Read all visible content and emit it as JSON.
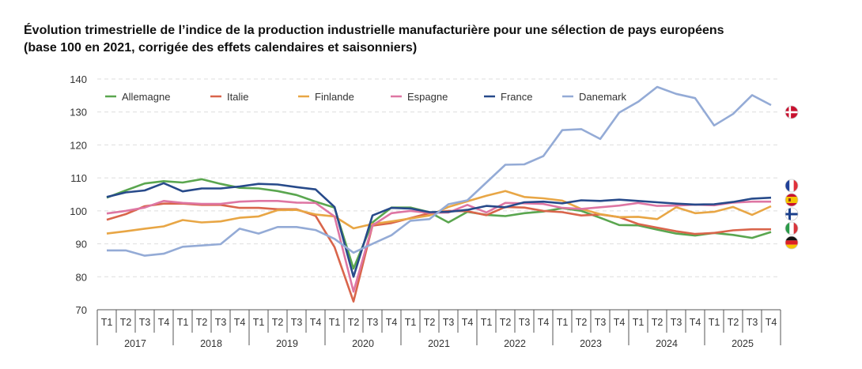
{
  "title_line1": "Évolution trimestrielle de l’indice de la production industrielle manufacturière pour une sélection de pays européens",
  "title_line2": "(base 100 en 2021, corrigée des effets calendaires et saisonniers)",
  "chart_data": {
    "type": "line",
    "title": "Évolution trimestrielle de l’indice de la production industrielle manufacturière pour une sélection de pays européens (base 100 en 2021, corrigée des effets calendaires et saisonniers)",
    "ylim": [
      70,
      140
    ],
    "yticks": [
      70,
      80,
      90,
      100,
      110,
      120,
      130,
      140
    ],
    "grid": "horizontal dashed",
    "legend": "top-left",
    "quarters": [
      "T1",
      "T2",
      "T3",
      "T4"
    ],
    "years": [
      "2017",
      "2018",
      "2019",
      "2020",
      "2021",
      "2022",
      "2023",
      "2024",
      "2025"
    ],
    "series": [
      {
        "name": "Allemagne",
        "color": "#5aa64f",
        "flag": "germany-flag",
        "values": [
          104,
          106.2,
          108.3,
          109,
          108.6,
          109.6,
          108.2,
          107,
          106.8,
          106,
          104.8,
          102.8,
          101,
          82.5,
          96.5,
          101,
          101,
          99.6,
          96.5,
          99.7,
          98.8,
          98.4,
          99.3,
          99.8,
          100.8,
          100,
          97.9,
          95.7,
          95.6,
          94.3,
          93.1,
          92.5,
          93.3,
          92.7,
          91.8,
          93.6
        ]
      },
      {
        "name": "Italie",
        "color": "#d9654b",
        "flag": "italy-flag",
        "values": [
          97.3,
          99,
          101.4,
          102.2,
          102.2,
          101.8,
          101.8,
          100.9,
          100.9,
          100.5,
          100.5,
          98.5,
          89,
          72.5,
          95.5,
          96.3,
          97.8,
          99.3,
          100,
          99.9,
          98.7,
          101.2,
          101,
          100,
          99.6,
          98.6,
          98.9,
          98.1,
          96,
          94.9,
          93.8,
          93,
          93.3,
          94.1,
          94.4,
          94.4
        ]
      },
      {
        "name": "Finlande",
        "color": "#e8a645",
        "flag": "finland-flag",
        "values": [
          93.1,
          93.8,
          94.6,
          95.3,
          97.2,
          96.5,
          96.8,
          97.9,
          98.3,
          100.2,
          100.3,
          98.9,
          98.3,
          94.7,
          96,
          96.8,
          97.7,
          98.6,
          101.2,
          102.9,
          104.6,
          106,
          104.2,
          103.8,
          103.1,
          100.6,
          99,
          98.1,
          98.2,
          97.5,
          101.1,
          99.3,
          99.7,
          101.2,
          98.8,
          101.4
        ]
      },
      {
        "name": "Espagne",
        "color": "#de76a3",
        "flag": "spain-flag",
        "values": [
          99.2,
          100,
          101,
          103,
          102.4,
          102.1,
          102.1,
          102.8,
          103,
          103,
          102.5,
          102.4,
          98.3,
          75.5,
          95.6,
          99.3,
          100,
          99.4,
          99.5,
          101.8,
          99.5,
          102.4,
          102.3,
          102.1,
          100.9,
          100.6,
          101.1,
          101.6,
          102.4,
          101.5,
          101.6,
          101.9,
          101.7,
          102.5,
          102.8,
          102.8
        ]
      },
      {
        "name": "France",
        "color": "#274a8a",
        "flag": "france-flag",
        "values": [
          104.2,
          105.6,
          106.2,
          108.4,
          105.9,
          106.8,
          106.8,
          107.4,
          108.2,
          108,
          107.2,
          106.5,
          101.2,
          80,
          98.6,
          100.9,
          100.7,
          99.6,
          99.7,
          100.3,
          101.5,
          101.1,
          102.6,
          102.8,
          102.3,
          103.2,
          103,
          103.4,
          103,
          102.6,
          102.2,
          101.9,
          102,
          102.7,
          103.7,
          104
        ]
      },
      {
        "name": "Danemark",
        "color": "#94abd6",
        "flag": "denmark-flag",
        "values": [
          88,
          88,
          86.4,
          87,
          89.1,
          89.5,
          89.9,
          94.6,
          93.1,
          95.1,
          95.1,
          94.2,
          91.5,
          87.3,
          90,
          92.6,
          97,
          97.5,
          102,
          103.2,
          108.6,
          114,
          114.1,
          116.6,
          124.5,
          124.8,
          121.8,
          129.8,
          133.1,
          137.6,
          135.5,
          134.2,
          125.9,
          129.4,
          135.1,
          132.1
        ]
      }
    ]
  }
}
